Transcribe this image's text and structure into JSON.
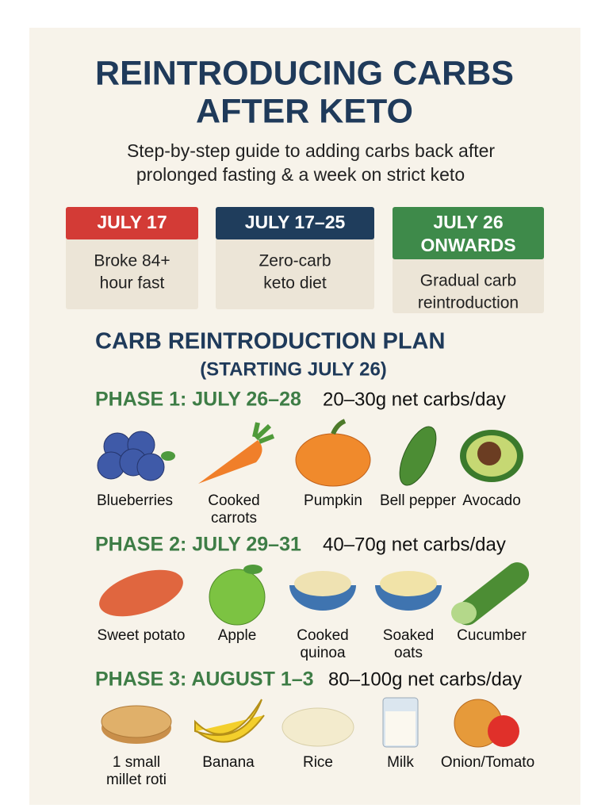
{
  "header": {
    "title_lines": [
      "REINTRODUCING CARBS",
      "AFTER KETO"
    ],
    "subtitle_lines": [
      "Step-by-step guide to adding carbs back after",
      "prolonged fasting & a week on strict keto"
    ]
  },
  "timeline": [
    {
      "label_lines": [
        "JULY 17"
      ],
      "text_lines": [
        "Broke 84+",
        "hour fast"
      ]
    },
    {
      "label_lines": [
        "JULY 17–25"
      ],
      "text_lines": [
        "Zero-carb",
        "keto diet"
      ]
    },
    {
      "label_lines": [
        "JULY 26",
        "ONWARDS"
      ],
      "text_lines": [
        "Gradual carb",
        "reintroduction"
      ]
    }
  ],
  "plan": {
    "title": "CARB REINTRODUCTION PLAN",
    "subtitle": "(STARTING JULY 26)",
    "phases": [
      {
        "name": "PHASE 1: JULY 26–28",
        "carbs": "20–30g net carbs/day",
        "foods": [
          [
            "Blueberries"
          ],
          [
            "Cooked",
            "carrots"
          ],
          [
            "Pumpkin"
          ],
          [
            "Bell pepper"
          ],
          [
            "Avocado"
          ]
        ]
      },
      {
        "name": "PHASE 2: JULY 29–31",
        "carbs": "40–70g net carbs/day",
        "foods": [
          [
            "Sweet potato"
          ],
          [
            "Apple"
          ],
          [
            "Cooked",
            "quinoa"
          ],
          [
            "Soaked",
            "oats"
          ],
          [
            "Cucumber"
          ]
        ]
      },
      {
        "name": "PHASE 3: AUGUST 1–3",
        "carbs": "80–100g net carbs/day",
        "foods": [
          [
            "1 small",
            "millet roti"
          ],
          [
            "Banana"
          ],
          [
            "Rice"
          ],
          [
            "Milk"
          ],
          [
            "Onion/Tomato"
          ]
        ]
      }
    ]
  }
}
